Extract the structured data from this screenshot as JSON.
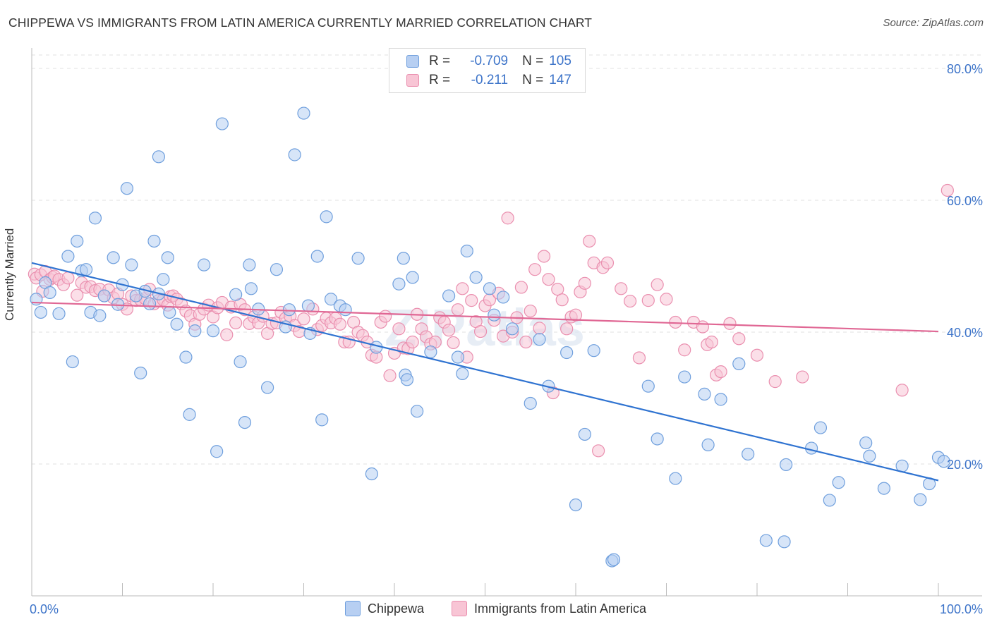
{
  "title": "CHIPPEWA VS IMMIGRANTS FROM LATIN AMERICA CURRENTLY MARRIED CORRELATION CHART",
  "source": "Source: ZipAtlas.com",
  "watermark": "ZIPatlas",
  "legend_top": [
    {
      "r_label": "R =",
      "r_value": "-0.709",
      "n_label": "N =",
      "n_value": "105"
    },
    {
      "r_label": "R =",
      "r_value": "-0.211",
      "n_label": "N =",
      "n_value": "147"
    }
  ],
  "legend_bottom": [
    "Chippewa",
    "Immigrants from Latin America"
  ],
  "colors": {
    "blue_fill": "#b7cff2",
    "blue_stroke": "#6f9fdd",
    "blue_line": "#2f73d1",
    "pink_fill": "#f8c5d5",
    "pink_stroke": "#ea8faf",
    "pink_line": "#e06794",
    "tick_text": "#3d74c9"
  },
  "chart_data": {
    "type": "scatter",
    "title": "CHIPPEWA VS IMMIGRANTS FROM LATIN AMERICA CURRENTLY MARRIED CORRELATION CHART",
    "xlabel": "",
    "ylabel": "Currently Married",
    "xlim": [
      0,
      100
    ],
    "ylim": [
      0,
      80
    ],
    "x_tick_labels": [
      "0.0%",
      "100.0%"
    ],
    "y_ticks": [
      20,
      40,
      60,
      80
    ],
    "y_tick_labels": [
      "20.0%",
      "40.0%",
      "60.0%",
      "80.0%"
    ],
    "series": [
      {
        "name": "Chippewa",
        "R": -0.709,
        "N": 105,
        "trend": {
          "x": [
            0,
            100
          ],
          "y": [
            50.5,
            17.5
          ]
        },
        "points": [
          [
            0.5,
            45
          ],
          [
            1,
            43
          ],
          [
            1.5,
            47.5
          ],
          [
            2,
            46
          ],
          [
            3,
            42.8
          ],
          [
            4,
            51.5
          ],
          [
            4.5,
            35.5
          ],
          [
            5,
            53.8
          ],
          [
            5.5,
            49.3
          ],
          [
            6,
            49.5
          ],
          [
            6.5,
            43
          ],
          [
            7,
            57.3
          ],
          [
            7.5,
            42.5
          ],
          [
            8,
            45.5
          ],
          [
            9,
            51.3
          ],
          [
            9.5,
            44.2
          ],
          [
            10,
            47.2
          ],
          [
            10.5,
            61.8
          ],
          [
            11,
            50.2
          ],
          [
            11.5,
            45.5
          ],
          [
            12,
            33.8
          ],
          [
            12.5,
            46.2
          ],
          [
            13,
            44.3
          ],
          [
            13.5,
            53.8
          ],
          [
            14,
            45.8
          ],
          [
            14,
            66.6
          ],
          [
            14.5,
            48
          ],
          [
            15,
            51.3
          ],
          [
            15.2,
            43
          ],
          [
            16,
            41.2
          ],
          [
            17,
            36.2
          ],
          [
            17.4,
            27.5
          ],
          [
            18,
            40.2
          ],
          [
            19,
            50.2
          ],
          [
            20,
            40.2
          ],
          [
            20.4,
            21.9
          ],
          [
            21,
            71.6
          ],
          [
            22.5,
            45.7
          ],
          [
            23,
            35.5
          ],
          [
            23.5,
            26.3
          ],
          [
            24,
            50.2
          ],
          [
            24.2,
            46.6
          ],
          [
            25,
            43.5
          ],
          [
            26,
            31.6
          ],
          [
            27,
            49.5
          ],
          [
            28,
            40.8
          ],
          [
            28.4,
            43.4
          ],
          [
            29,
            66.9
          ],
          [
            30,
            73.2
          ],
          [
            30.5,
            44
          ],
          [
            30.7,
            39.8
          ],
          [
            31.5,
            51.5
          ],
          [
            32,
            26.7
          ],
          [
            32.5,
            57.5
          ],
          [
            33,
            45
          ],
          [
            34,
            44
          ],
          [
            34.6,
            43.4
          ],
          [
            36,
            51.2
          ],
          [
            37.5,
            18.5
          ],
          [
            38,
            37.7
          ],
          [
            40.5,
            47.3
          ],
          [
            41,
            51.2
          ],
          [
            41.2,
            33.5
          ],
          [
            41.4,
            32.8
          ],
          [
            42,
            48.3
          ],
          [
            42.5,
            28
          ],
          [
            44,
            37
          ],
          [
            46,
            45.5
          ],
          [
            47,
            36.2
          ],
          [
            47.5,
            33.7
          ],
          [
            48,
            52.3
          ],
          [
            49,
            48.3
          ],
          [
            50.5,
            46.6
          ],
          [
            51,
            42.6
          ],
          [
            52,
            45.3
          ],
          [
            53,
            40.5
          ],
          [
            55,
            29.2
          ],
          [
            56,
            38.9
          ],
          [
            57,
            31.8
          ],
          [
            59,
            36.9
          ],
          [
            60,
            13.8
          ],
          [
            61,
            24.5
          ],
          [
            62,
            37.2
          ],
          [
            64,
            5.3
          ],
          [
            64.2,
            5.5
          ],
          [
            68,
            31.8
          ],
          [
            69,
            23.8
          ],
          [
            71,
            17.8
          ],
          [
            72,
            33.2
          ],
          [
            74.2,
            30.6
          ],
          [
            74.6,
            22.9
          ],
          [
            76,
            29.8
          ],
          [
            78,
            35.2
          ],
          [
            79,
            21.5
          ],
          [
            81,
            8.4
          ],
          [
            83,
            8.2
          ],
          [
            83.2,
            19.9
          ],
          [
            86,
            22.4
          ],
          [
            87,
            25.5
          ],
          [
            88,
            14.5
          ],
          [
            89,
            17.2
          ],
          [
            92,
            23.2
          ],
          [
            92.4,
            21.2
          ],
          [
            94,
            16.3
          ],
          [
            96,
            19.7
          ],
          [
            98,
            14.6
          ],
          [
            99,
            17
          ],
          [
            100,
            21
          ],
          [
            100.6,
            20.4
          ]
        ]
      },
      {
        "name": "Immigrants from Latin America",
        "R": -0.211,
        "N": 147,
        "trend": {
          "x": [
            0,
            100
          ],
          "y": [
            44.5,
            40.1
          ]
        },
        "points": [
          [
            0.3,
            48.8
          ],
          [
            0.5,
            48.2
          ],
          [
            1,
            48.7
          ],
          [
            1.2,
            46.2
          ],
          [
            1.5,
            49.2
          ],
          [
            2,
            48
          ],
          [
            2.3,
            48.3
          ],
          [
            2.5,
            48.5
          ],
          [
            3,
            48
          ],
          [
            3.5,
            47.2
          ],
          [
            4,
            48.2
          ],
          [
            5,
            45.6
          ],
          [
            5.5,
            47.5
          ],
          [
            6,
            46.8
          ],
          [
            6.5,
            46.9
          ],
          [
            7,
            46.3
          ],
          [
            7.5,
            46.5
          ],
          [
            8,
            45.5
          ],
          [
            8.5,
            46.4
          ],
          [
            9,
            45.2
          ],
          [
            9.5,
            45.8
          ],
          [
            10,
            44.2
          ],
          [
            10.5,
            43.5
          ],
          [
            11,
            45.5
          ],
          [
            11.5,
            44.8
          ],
          [
            12,
            44.9
          ],
          [
            12.5,
            45.1
          ],
          [
            13,
            46.5
          ],
          [
            13.5,
            44.3
          ],
          [
            14,
            44.8
          ],
          [
            14.5,
            44.9
          ],
          [
            15,
            44.1
          ],
          [
            15.3,
            45.4
          ],
          [
            15.6,
            45.5
          ],
          [
            16,
            45
          ],
          [
            16.5,
            44.3
          ],
          [
            17,
            43.2
          ],
          [
            17.5,
            42.5
          ],
          [
            18,
            41.2
          ],
          [
            18.5,
            42.7
          ],
          [
            19,
            43.5
          ],
          [
            19.5,
            44.1
          ],
          [
            20,
            42.3
          ],
          [
            20.5,
            43.7
          ],
          [
            21,
            44.5
          ],
          [
            21.5,
            39.6
          ],
          [
            22,
            43.8
          ],
          [
            22.5,
            41.4
          ],
          [
            23,
            44.2
          ],
          [
            23.5,
            43.4
          ],
          [
            24,
            41.3
          ],
          [
            24.5,
            42.3
          ],
          [
            25,
            41.4
          ],
          [
            25.5,
            42.4
          ],
          [
            26,
            39.8
          ],
          [
            26.5,
            41.3
          ],
          [
            27,
            41.4
          ],
          [
            27.5,
            43
          ],
          [
            28,
            42.1
          ],
          [
            28.5,
            42.4
          ],
          [
            29,
            41
          ],
          [
            29.5,
            40.1
          ],
          [
            30,
            42
          ],
          [
            31,
            43.5
          ],
          [
            31.5,
            40.4
          ],
          [
            32,
            41
          ],
          [
            32.5,
            42.1
          ],
          [
            33,
            41.4
          ],
          [
            33.5,
            42.1
          ],
          [
            34,
            41.2
          ],
          [
            34.5,
            38.5
          ],
          [
            35,
            38.5
          ],
          [
            35.5,
            41.5
          ],
          [
            36,
            40
          ],
          [
            36.5,
            39.5
          ],
          [
            37,
            38.5
          ],
          [
            37.5,
            36.5
          ],
          [
            38,
            36.2
          ],
          [
            38.5,
            41.5
          ],
          [
            39,
            42.4
          ],
          [
            39.5,
            33.4
          ],
          [
            40,
            36.8
          ],
          [
            40.5,
            40.5
          ],
          [
            41,
            37.6
          ],
          [
            41.5,
            37.5
          ],
          [
            42,
            38.5
          ],
          [
            42.5,
            42.7
          ],
          [
            43,
            40.5
          ],
          [
            43.5,
            39.3
          ],
          [
            44,
            38.2
          ],
          [
            44.5,
            38.5
          ],
          [
            45,
            42.2
          ],
          [
            45.5,
            41.5
          ],
          [
            46,
            40.3
          ],
          [
            46.5,
            38.4
          ],
          [
            47,
            43.4
          ],
          [
            47.5,
            46.6
          ],
          [
            48,
            36.2
          ],
          [
            48.5,
            44.8
          ],
          [
            49,
            41.6
          ],
          [
            49.5,
            40.1
          ],
          [
            50,
            44
          ],
          [
            50.5,
            44.9
          ],
          [
            51,
            41.8
          ],
          [
            51.5,
            45.9
          ],
          [
            52,
            39.4
          ],
          [
            52.5,
            57.3
          ],
          [
            53,
            40
          ],
          [
            53.5,
            42.2
          ],
          [
            54,
            46.8
          ],
          [
            54.5,
            38.5
          ],
          [
            55,
            43.2
          ],
          [
            55.5,
            49.5
          ],
          [
            56,
            40.6
          ],
          [
            56.5,
            51.5
          ],
          [
            57,
            48
          ],
          [
            57.5,
            30.8
          ],
          [
            58,
            46.5
          ],
          [
            58.5,
            44.9
          ],
          [
            59,
            40.5
          ],
          [
            59.5,
            42.3
          ],
          [
            60,
            42.6
          ],
          [
            60.5,
            46.1
          ],
          [
            61,
            47.4
          ],
          [
            61.5,
            53.8
          ],
          [
            62,
            50.5
          ],
          [
            62.5,
            22
          ],
          [
            63,
            49.8
          ],
          [
            63.5,
            50.5
          ],
          [
            65,
            46.6
          ],
          [
            66,
            44.7
          ],
          [
            67,
            36.1
          ],
          [
            68,
            44.8
          ],
          [
            69,
            47.2
          ],
          [
            70,
            45
          ],
          [
            71,
            41.5
          ],
          [
            72,
            37.3
          ],
          [
            73,
            41.5
          ],
          [
            74,
            40.8
          ],
          [
            74.5,
            38.1
          ],
          [
            75,
            38.5
          ],
          [
            75.5,
            33.5
          ],
          [
            76,
            34
          ],
          [
            77,
            41.3
          ],
          [
            78,
            39
          ],
          [
            80,
            36.5
          ],
          [
            82,
            32.5
          ],
          [
            85,
            33.2
          ],
          [
            96,
            31.2
          ],
          [
            101,
            61.5
          ]
        ]
      }
    ]
  }
}
